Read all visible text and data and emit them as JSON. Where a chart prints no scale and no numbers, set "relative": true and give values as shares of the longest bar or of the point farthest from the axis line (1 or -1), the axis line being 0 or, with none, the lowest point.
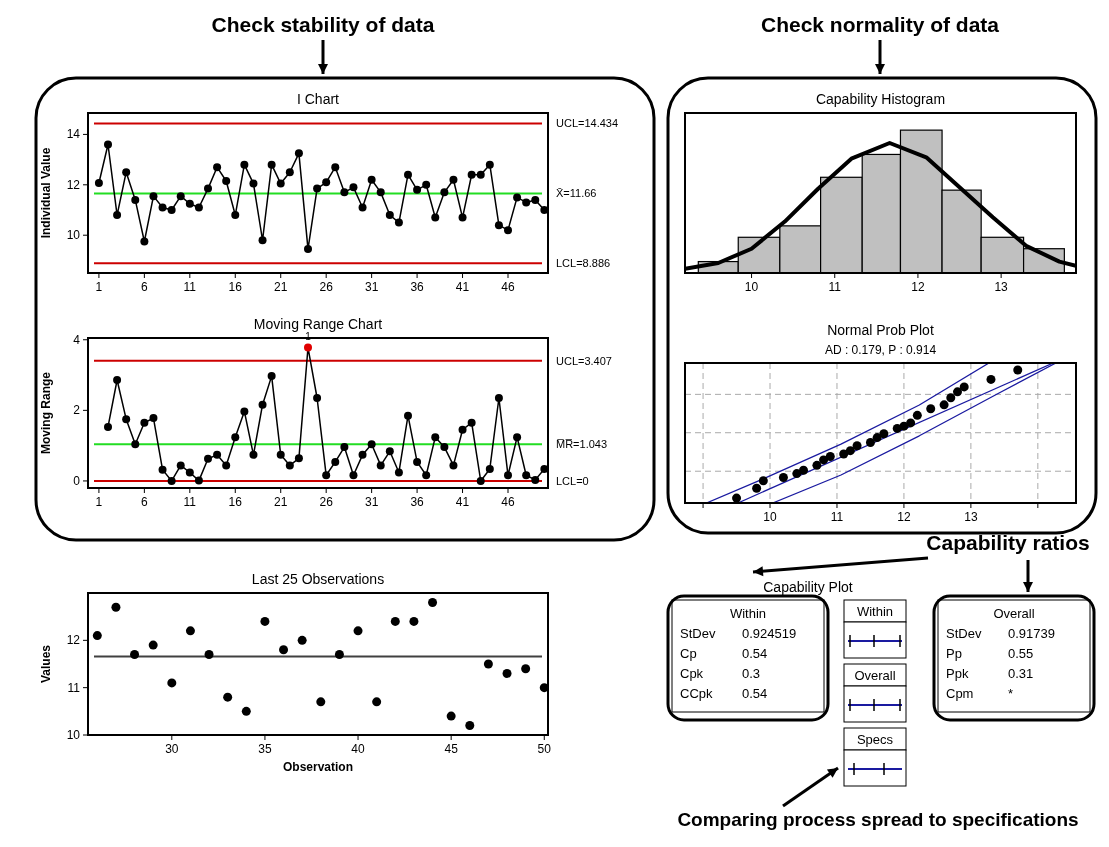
{
  "chart_data": [
    {
      "type": "line",
      "title": "I Chart",
      "ylabel": "Individual Value",
      "marker": "circle",
      "color": "#000000",
      "x": [
        1,
        2,
        3,
        4,
        5,
        6,
        7,
        8,
        9,
        10,
        11,
        12,
        13,
        14,
        15,
        16,
        17,
        18,
        19,
        20,
        21,
        22,
        23,
        24,
        25,
        26,
        27,
        28,
        29,
        30,
        31,
        32,
        33,
        34,
        35,
        36,
        37,
        38,
        39,
        40,
        41,
        42,
        43,
        44,
        45,
        46,
        47,
        48,
        49,
        50
      ],
      "values": [
        12.07,
        13.6,
        10.8,
        12.5,
        11.4,
        9.75,
        11.55,
        11.1,
        11.0,
        11.55,
        11.25,
        11.1,
        11.85,
        12.7,
        12.15,
        10.8,
        12.8,
        12.05,
        9.8,
        12.8,
        12.05,
        12.5,
        13.25,
        9.45,
        11.85,
        12.1,
        12.7,
        11.7,
        11.9,
        11.1,
        12.2,
        11.7,
        10.8,
        10.5,
        12.4,
        11.8,
        12.0,
        10.7,
        11.7,
        12.2,
        10.7,
        12.4,
        12.4,
        12.8,
        10.4,
        10.2,
        11.5,
        11.3,
        11.4,
        11.0
      ],
      "xlim": [
        -0.2,
        50.4
      ],
      "xticks": [
        1,
        6,
        11,
        16,
        21,
        26,
        31,
        36,
        41,
        46
      ],
      "ylim": [
        8.5,
        14.85
      ],
      "yticks": [
        10,
        12,
        14
      ],
      "ref_lines": [
        {
          "axis": "y",
          "value": 14.434,
          "label": "UCL=14.434",
          "color": "#cc0000"
        },
        {
          "axis": "y",
          "value": 11.66,
          "label": "X̄=11.66",
          "color": "#22dd22"
        },
        {
          "axis": "y",
          "value": 8.886,
          "label": "LCL=8.886",
          "color": "#cc0000"
        }
      ],
      "annotations": [
        "Check stability of data"
      ]
    },
    {
      "type": "line",
      "title": "Moving Range Chart",
      "ylabel": "Moving Range",
      "marker": "circle",
      "color": "#000000",
      "x": [
        2,
        3,
        4,
        5,
        6,
        7,
        8,
        9,
        10,
        11,
        12,
        13,
        14,
        15,
        16,
        17,
        18,
        19,
        20,
        21,
        22,
        23,
        24,
        25,
        26,
        27,
        28,
        29,
        30,
        31,
        32,
        33,
        34,
        35,
        36,
        37,
        38,
        39,
        40,
        41,
        42,
        43,
        44,
        45,
        46,
        47,
        48,
        49,
        50
      ],
      "values": [
        1.53,
        2.86,
        1.75,
        1.04,
        1.65,
        1.78,
        0.32,
        0.0,
        0.44,
        0.24,
        0.01,
        0.63,
        0.74,
        0.44,
        1.24,
        1.97,
        0.74,
        2.16,
        2.97,
        0.74,
        0.44,
        0.64,
        3.78,
        2.35,
        0.16,
        0.54,
        0.96,
        0.16,
        0.74,
        1.04,
        0.44,
        0.84,
        0.24,
        1.85,
        0.54,
        0.16,
        1.24,
        0.96,
        0.44,
        1.45,
        1.65,
        0.0,
        0.34,
        2.35,
        0.16,
        1.24,
        0.16,
        0.03,
        0.34
      ],
      "colors": [
        "#000000",
        "#000000",
        "#000000",
        "#000000",
        "#000000",
        "#000000",
        "#000000",
        "#000000",
        "#000000",
        "#000000",
        "#000000",
        "#000000",
        "#000000",
        "#000000",
        "#000000",
        "#000000",
        "#000000",
        "#000000",
        "#000000",
        "#000000",
        "#000000",
        "#000000",
        "#e00000",
        "#000000",
        "#000000",
        "#000000",
        "#000000",
        "#000000",
        "#000000",
        "#000000",
        "#000000",
        "#000000",
        "#000000",
        "#000000",
        "#000000",
        "#000000",
        "#000000",
        "#000000",
        "#000000",
        "#000000",
        "#000000",
        "#000000",
        "#000000",
        "#000000",
        "#000000",
        "#000000",
        "#000000",
        "#000000",
        "#000000"
      ],
      "xlim": [
        -0.2,
        50.4
      ],
      "xticks": [
        1,
        6,
        11,
        16,
        21,
        26,
        31,
        36,
        41,
        46
      ],
      "ylim": [
        -0.2,
        4.05
      ],
      "yticks": [
        0,
        2,
        4
      ],
      "ref_lines": [
        {
          "axis": "y",
          "value": 3.407,
          "label": "UCL=3.407",
          "color": "#cc0000"
        },
        {
          "axis": "y",
          "value": 1.043,
          "label": "M̅R̅=1.043",
          "color": "#22dd22"
        },
        {
          "axis": "y",
          "value": 0,
          "label": "LCL=0",
          "color": "#cc0000"
        }
      ],
      "annotations": [
        {
          "text": "1",
          "x": 24,
          "y": 3.78
        }
      ]
    },
    {
      "type": "scatter",
      "title": "Last 25 Observations",
      "xlabel": "Observation",
      "ylabel": "Values",
      "color": "#000000",
      "x": [
        26,
        27,
        28,
        29,
        30,
        31,
        32,
        33,
        34,
        35,
        36,
        37,
        38,
        39,
        40,
        41,
        42,
        43,
        44,
        45,
        46,
        47,
        48,
        49,
        50
      ],
      "values": [
        12.1,
        12.7,
        11.7,
        11.9,
        11.1,
        12.2,
        11.7,
        10.8,
        10.5,
        12.4,
        11.8,
        12.0,
        10.7,
        11.7,
        12.2,
        10.7,
        12.4,
        12.4,
        12.8,
        10.4,
        10.2,
        11.5,
        11.3,
        11.4,
        11.0
      ],
      "xlim": [
        25.5,
        50.2
      ],
      "xticks": [
        30,
        35,
        40,
        45,
        50
      ],
      "ylim": [
        10,
        13
      ],
      "yticks": [
        10,
        11,
        12
      ],
      "ref_lines": [
        {
          "axis": "y",
          "value": 11.66,
          "color": "#404040"
        }
      ]
    },
    {
      "type": "histogram",
      "title": "Capability Histogram",
      "relative": true,
      "xlim": [
        9.2,
        13.9
      ],
      "xticks": [
        10,
        11,
        12,
        13
      ],
      "series": [
        {
          "type": "histogram",
          "color": "#c0c0c0",
          "bins": [
            9.36,
            9.84,
            10.34,
            10.83,
            11.33,
            11.79,
            12.29,
            12.76,
            13.27,
            13.76
          ],
          "values": [
            0.08,
            0.25,
            0.33,
            0.67,
            0.83,
            1,
            0.58,
            0.25,
            0.17
          ]
        },
        {
          "type": "line",
          "color": "#000000",
          "x": [
            9.2,
            9.6,
            10.0,
            10.4,
            10.8,
            11.2,
            11.66,
            12.1,
            12.5,
            12.9,
            13.3,
            13.7,
            13.9
          ],
          "values": [
            0.03,
            0.07,
            0.17,
            0.36,
            0.59,
            0.8,
            0.91,
            0.81,
            0.6,
            0.39,
            0.19,
            0.08,
            0.05
          ]
        }
      ],
      "annotations": [
        "Check normality of data"
      ]
    },
    {
      "type": "scatter",
      "title": "Normal Prob Plot",
      "subtitle": "AD : 0.179, P : 0.914",
      "relative": true,
      "grid": true,
      "xlim": [
        8.73,
        14.57
      ],
      "xticks": [
        {
          "value": 9,
          "label": null
        },
        10,
        11,
        12,
        13,
        {
          "value": 14,
          "label": null
        }
      ],
      "series": [
        {
          "type": "line",
          "color": "#1a1aa0",
          "x": [
            9.05,
            9.89,
            11.06,
            12.23,
            13.27
          ],
          "values": [
            0,
            0.17,
            0.42,
            0.7,
            1
          ]
        },
        {
          "type": "line",
          "color": "#1a1aa0",
          "x": [
            9.52,
            14.23
          ],
          "values": [
            0,
            1
          ]
        },
        {
          "type": "line",
          "color": "#1a1aa0",
          "x": [
            10.04,
            11.06,
            12.23,
            13.4,
            14.27
          ],
          "values": [
            0,
            0.2,
            0.48,
            0.78,
            1
          ]
        },
        {
          "type": "scatter",
          "color": "#000000",
          "x": [
            9.5,
            9.8,
            9.9,
            10.2,
            10.4,
            10.5,
            10.7,
            10.8,
            10.9,
            11.1,
            11.2,
            11.3,
            11.5,
            11.6,
            11.7,
            11.9,
            12.0,
            12.1,
            12.2,
            12.4,
            12.6,
            12.7,
            12.8,
            12.9,
            13.3,
            13.7
          ],
          "values": [
            0.035,
            0.105,
            0.159,
            0.182,
            0.21,
            0.234,
            0.269,
            0.308,
            0.332,
            0.35,
            0.374,
            0.409,
            0.432,
            0.467,
            0.495,
            0.533,
            0.549,
            0.572,
            0.626,
            0.673,
            0.701,
            0.752,
            0.794,
            0.829,
            0.883,
            0.95
          ]
        }
      ]
    },
    {
      "type": "other",
      "title": "Capability Plot",
      "annotations": [
        "Within",
        "StDev",
        "0.924519",
        "Cp",
        "0.54",
        "Cpk",
        "0.3",
        "CCpk",
        "0.54",
        "Within",
        "Overall",
        "Specs",
        "Overall",
        "StDev",
        "0.91739",
        "Pp",
        "0.55",
        "Ppk",
        "0.31",
        "Cpm",
        "*",
        "Capability ratios",
        "Comparing process spread to specifications"
      ]
    }
  ]
}
